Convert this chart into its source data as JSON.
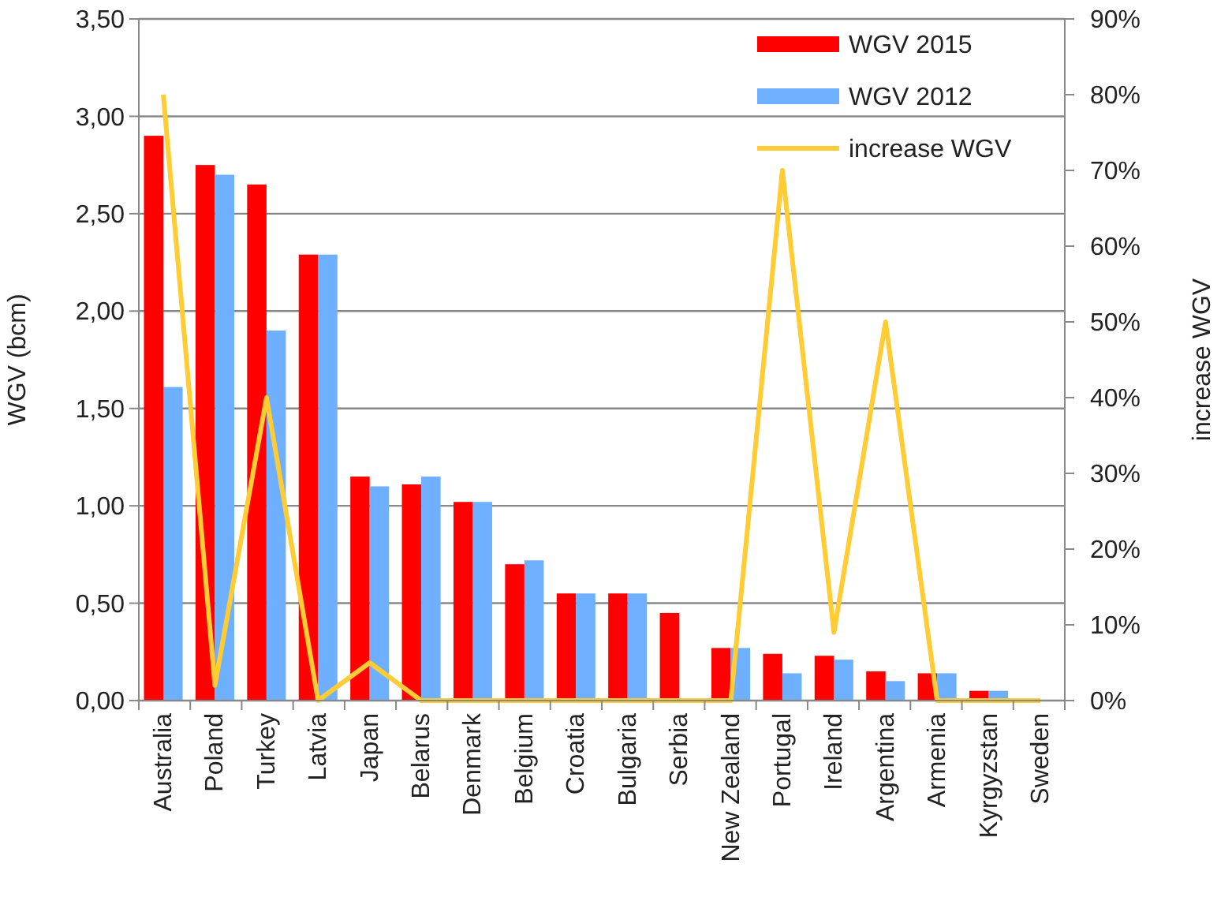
{
  "chart_data": {
    "type": "bar",
    "ylabel": "WGV (bcm)",
    "y2label": "increase WGV",
    "categories": [
      "Australia",
      "Poland",
      "Turkey",
      "Latvia",
      "Japan",
      "Belarus",
      "Denmark",
      "Belgium",
      "Croatia",
      "Bulgaria",
      "Serbia",
      "New Zealand",
      "Portugal",
      "Ireland",
      "Argentina",
      "Armenia",
      "Kyrgyzstan",
      "Sweden"
    ],
    "series": [
      {
        "name": "WGV 2015",
        "color": "#ff0000",
        "values": [
          2.9,
          2.75,
          2.65,
          2.29,
          1.15,
          1.11,
          1.02,
          0.7,
          0.55,
          0.55,
          0.45,
          0.27,
          0.24,
          0.23,
          0.15,
          0.14,
          0.05,
          0
        ]
      },
      {
        "name": "WGV 2012",
        "color": "#6eb0ff",
        "values": [
          1.61,
          2.7,
          1.9,
          2.29,
          1.1,
          1.15,
          1.02,
          0.72,
          0.55,
          0.55,
          0,
          0.27,
          0.14,
          0.21,
          0.1,
          0.14,
          0.05,
          0
        ]
      },
      {
        "name": "increase WGV",
        "type": "line",
        "axis": "y2",
        "color": "#ffcc33",
        "values": [
          80,
          2,
          40,
          0,
          5,
          0,
          0,
          0,
          0,
          0,
          0,
          0,
          70,
          9,
          50,
          0,
          0,
          0
        ]
      }
    ],
    "ylim": [
      0,
      3.5
    ],
    "yticks": [
      {
        "value": 0,
        "label": "0,00"
      },
      {
        "value": 0.5,
        "label": "0,50"
      },
      {
        "value": 1,
        "label": "1,00"
      },
      {
        "value": 1.5,
        "label": "1,50"
      },
      {
        "value": 2,
        "label": "2,00"
      },
      {
        "value": 2.5,
        "label": "2,50"
      },
      {
        "value": 3,
        "label": "3,00"
      },
      {
        "value": 3.5,
        "label": "3,50"
      }
    ],
    "y2lim": [
      0,
      90
    ],
    "y2ticks": [
      {
        "value": 0,
        "label": "0%"
      },
      {
        "value": 10,
        "label": "10%"
      },
      {
        "value": 20,
        "label": "20%"
      },
      {
        "value": 30,
        "label": "30%"
      },
      {
        "value": 40,
        "label": "40%"
      },
      {
        "value": 50,
        "label": "50%"
      },
      {
        "value": 60,
        "label": "60%"
      },
      {
        "value": 70,
        "label": "70%"
      },
      {
        "value": 80,
        "label": "80%"
      },
      {
        "value": 90,
        "label": "90%"
      }
    ],
    "grid": "y",
    "legend": "top right"
  }
}
